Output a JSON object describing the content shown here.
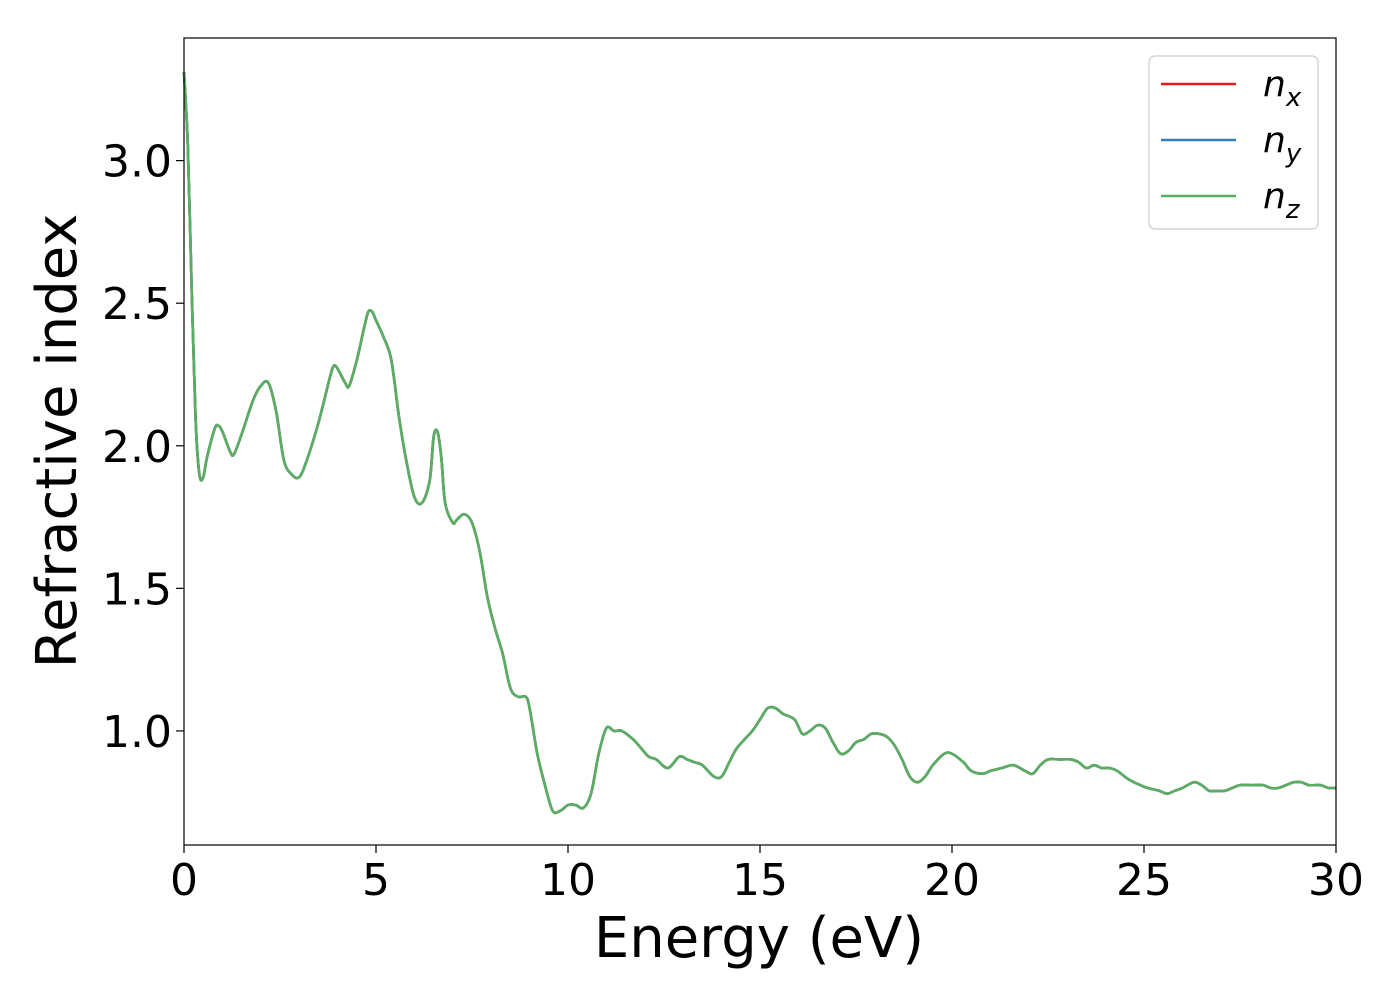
{
  "chart_data": {
    "type": "line",
    "title": "",
    "xlabel": "Energy (eV)",
    "ylabel": "Refractive index",
    "xlim": [
      0,
      30
    ],
    "ylim": [
      0.6,
      3.43
    ],
    "x_ticks": [
      0,
      5,
      10,
      15,
      20,
      25,
      30
    ],
    "x_tick_labels": [
      "0",
      "5",
      "10",
      "15",
      "20",
      "25",
      "30"
    ],
    "y_ticks": [
      1.0,
      1.5,
      2.0,
      2.5,
      3.0
    ],
    "y_tick_labels": [
      "1.0",
      "1.5",
      "2.0",
      "2.5",
      "3.0"
    ],
    "grid": false,
    "legend_position": "top-right",
    "colors": {
      "n_x": "#e41a1c",
      "n_y": "#377eb8",
      "n_z": "#5aae61"
    },
    "series": [
      {
        "name": "n_x",
        "label_base": "n",
        "label_sub": "x",
        "color": "#e41a1c"
      },
      {
        "name": "n_y",
        "label_base": "n",
        "label_sub": "y",
        "color": "#377eb8"
      },
      {
        "name": "n_z",
        "label_base": "n",
        "label_sub": "z",
        "color": "#5aae61"
      }
    ],
    "x": [
      0,
      0.1,
      0.2,
      0.3,
      0.4,
      0.5,
      0.6,
      0.8,
      0.9,
      1.0,
      1.2,
      1.3,
      1.5,
      1.8,
      2.0,
      2.2,
      2.4,
      2.6,
      2.8,
      3.0,
      3.2,
      3.5,
      3.8,
      3.9,
      4.0,
      4.2,
      4.3,
      4.5,
      4.7,
      4.8,
      4.9,
      5.0,
      5.2,
      5.4,
      5.6,
      5.8,
      6.0,
      6.2,
      6.4,
      6.5,
      6.6,
      6.7,
      6.8,
      7.0,
      7.1,
      7.3,
      7.5,
      7.7,
      7.9,
      8.1,
      8.3,
      8.5,
      8.7,
      8.9,
      9.0,
      9.2,
      9.4,
      9.6,
      9.8,
      10.0,
      10.2,
      10.4,
      10.6,
      10.8,
      11.0,
      11.2,
      11.4,
      11.7,
      11.9,
      12.1,
      12.3,
      12.6,
      12.9,
      13.1,
      13.3,
      13.5,
      13.8,
      14.0,
      14.2,
      14.4,
      14.8,
      15.0,
      15.2,
      15.4,
      15.6,
      15.9,
      16.1,
      16.3,
      16.5,
      16.7,
      16.9,
      17.1,
      17.3,
      17.5,
      17.7,
      17.9,
      18.1,
      18.3,
      18.5,
      18.7,
      18.9,
      19.1,
      19.3,
      19.5,
      19.8,
      20.0,
      20.3,
      20.5,
      20.8,
      21.0,
      21.3,
      21.6,
      21.9,
      22.1,
      22.3,
      22.5,
      22.8,
      23.1,
      23.3,
      23.5,
      23.7,
      23.9,
      24.1,
      24.3,
      24.6,
      24.9,
      25.1,
      25.4,
      25.6,
      25.8,
      26.0,
      26.3,
      26.5,
      26.7,
      26.9,
      27.1,
      27.3,
      27.5,
      27.8,
      28.1,
      28.3,
      28.5,
      28.7,
      28.9,
      29.1,
      29.3,
      29.6,
      29.8,
      30.0
    ],
    "y": [
      3.31,
      3.05,
      2.55,
      2.1,
      1.9,
      1.89,
      1.96,
      2.06,
      2.07,
      2.05,
      1.98,
      1.97,
      2.04,
      2.16,
      2.21,
      2.22,
      2.12,
      1.95,
      1.9,
      1.89,
      1.95,
      2.08,
      2.24,
      2.28,
      2.27,
      2.22,
      2.21,
      2.3,
      2.42,
      2.47,
      2.47,
      2.44,
      2.38,
      2.3,
      2.1,
      1.94,
      1.82,
      1.8,
      1.88,
      2.03,
      2.05,
      1.96,
      1.8,
      1.73,
      1.74,
      1.76,
      1.73,
      1.63,
      1.47,
      1.36,
      1.27,
      1.15,
      1.12,
      1.12,
      1.08,
      0.92,
      0.81,
      0.72,
      0.72,
      0.74,
      0.74,
      0.73,
      0.78,
      0.92,
      1.01,
      1.0,
      1.0,
      0.97,
      0.94,
      0.91,
      0.9,
      0.87,
      0.91,
      0.9,
      0.89,
      0.88,
      0.84,
      0.84,
      0.89,
      0.94,
      1.0,
      1.04,
      1.08,
      1.08,
      1.06,
      1.04,
      0.99,
      1.0,
      1.02,
      1.01,
      0.96,
      0.92,
      0.93,
      0.96,
      0.97,
      0.99,
      0.99,
      0.98,
      0.95,
      0.9,
      0.84,
      0.82,
      0.84,
      0.88,
      0.92,
      0.92,
      0.89,
      0.86,
      0.85,
      0.86,
      0.87,
      0.88,
      0.86,
      0.85,
      0.88,
      0.9,
      0.9,
      0.9,
      0.89,
      0.87,
      0.88,
      0.87,
      0.87,
      0.86,
      0.83,
      0.81,
      0.8,
      0.79,
      0.78,
      0.79,
      0.8,
      0.82,
      0.81,
      0.79,
      0.79,
      0.79,
      0.8,
      0.81,
      0.81,
      0.81,
      0.8,
      0.8,
      0.81,
      0.82,
      0.82,
      0.81,
      0.81,
      0.8,
      0.8
    ]
  }
}
